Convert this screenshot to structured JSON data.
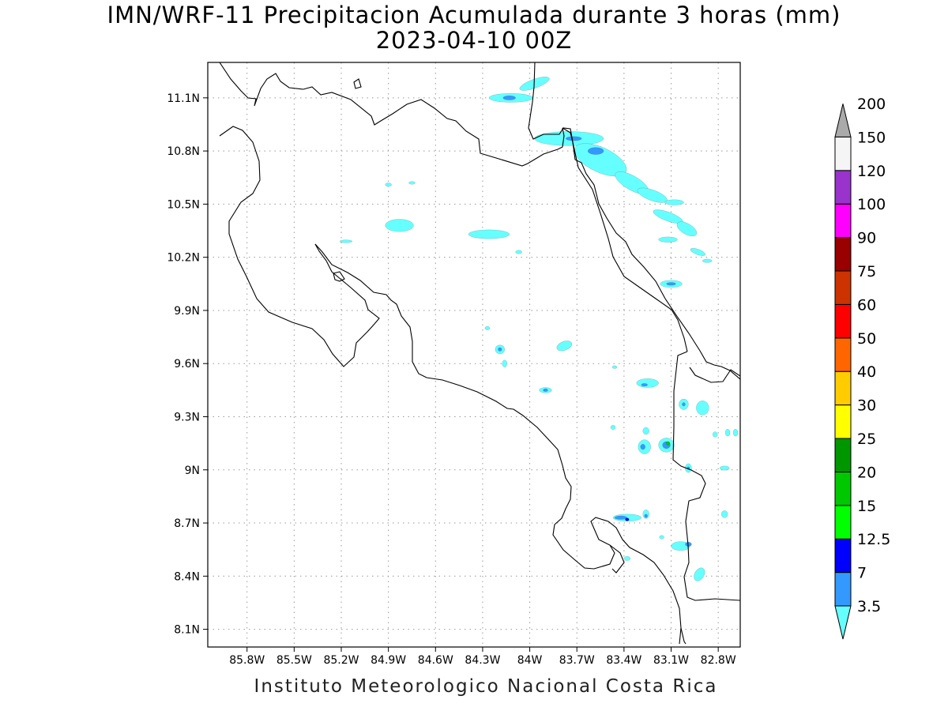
{
  "header": {
    "title": "IMN/WRF-11 Precipitacion Acumulada durante 3 horas (mm)",
    "date": "2023-04-10 00Z"
  },
  "footer": {
    "credit": "Instituto Meteorologico Nacional Costa Rica"
  },
  "map": {
    "lon_range": [
      -86.05,
      -82.66
    ],
    "lat_range": [
      8.0,
      11.3
    ],
    "x_ticks": [
      {
        "value": -85.8,
        "label": "85.8W"
      },
      {
        "value": -85.5,
        "label": "85.5W"
      },
      {
        "value": -85.2,
        "label": "85.2W"
      },
      {
        "value": -84.9,
        "label": "84.9W"
      },
      {
        "value": -84.6,
        "label": "84.6W"
      },
      {
        "value": -84.3,
        "label": "84.3W"
      },
      {
        "value": -84.0,
        "label": "84W"
      },
      {
        "value": -83.7,
        "label": "83.7W"
      },
      {
        "value": -83.4,
        "label": "83.4W"
      },
      {
        "value": -83.1,
        "label": "83.1W"
      },
      {
        "value": -82.8,
        "label": "82.8W"
      }
    ],
    "y_ticks": [
      {
        "value": 11.1,
        "label": "11.1N"
      },
      {
        "value": 10.8,
        "label": "10.8N"
      },
      {
        "value": 10.5,
        "label": "10.5N"
      },
      {
        "value": 10.2,
        "label": "10.2N"
      },
      {
        "value": 9.9,
        "label": "9.9N"
      },
      {
        "value": 9.6,
        "label": "9.6N"
      },
      {
        "value": 9.3,
        "label": "9.3N"
      },
      {
        "value": 9.0,
        "label": "9N"
      },
      {
        "value": 8.7,
        "label": "8.7N"
      },
      {
        "value": 8.4,
        "label": "8.4N"
      },
      {
        "value": 8.1,
        "label": "8.1N"
      }
    ],
    "grid": true,
    "precip_cells": [
      {
        "lon": -83.97,
        "lat": 11.18,
        "dlon": 0.1,
        "dlat": 0.025,
        "rot": -20,
        "mm": 3.5
      },
      {
        "lon": -84.12,
        "lat": 11.1,
        "dlon": 0.14,
        "dlat": 0.025,
        "mm": 3.5
      },
      {
        "lon": -84.13,
        "lat": 11.1,
        "dlon": 0.04,
        "dlat": 0.012,
        "mm": 7
      },
      {
        "lon": -83.75,
        "lat": 10.87,
        "dlon": 0.22,
        "dlat": 0.04,
        "mm": 3.5
      },
      {
        "lon": -83.72,
        "lat": 10.87,
        "dlon": 0.05,
        "dlat": 0.012,
        "mm": 7
      },
      {
        "lon": -83.55,
        "lat": 10.75,
        "dlon": 0.18,
        "dlat": 0.07,
        "rot": 25,
        "mm": 3.5
      },
      {
        "lon": -83.58,
        "lat": 10.8,
        "dlon": 0.05,
        "dlat": 0.02,
        "mm": 7
      },
      {
        "lon": -83.35,
        "lat": 10.62,
        "dlon": 0.12,
        "dlat": 0.04,
        "rot": 30,
        "mm": 3.5
      },
      {
        "lon": -83.22,
        "lat": 10.55,
        "dlon": 0.1,
        "dlat": 0.03,
        "rot": 20,
        "mm": 3.5
      },
      {
        "lon": -83.08,
        "lat": 10.51,
        "dlon": 0.06,
        "dlat": 0.015,
        "mm": 3.5
      },
      {
        "lon": -83.12,
        "lat": 10.43,
        "dlon": 0.1,
        "dlat": 0.025,
        "rot": 20,
        "mm": 3.5
      },
      {
        "lon": -83.0,
        "lat": 10.36,
        "dlon": 0.07,
        "dlat": 0.03,
        "rot": 30,
        "mm": 3.5
      },
      {
        "lon": -83.12,
        "lat": 10.3,
        "dlon": 0.06,
        "dlat": 0.015,
        "mm": 3.5
      },
      {
        "lon": -82.93,
        "lat": 10.23,
        "dlon": 0.05,
        "dlat": 0.015,
        "rot": 20,
        "mm": 3.5
      },
      {
        "lon": -82.87,
        "lat": 10.18,
        "dlon": 0.03,
        "dlat": 0.01,
        "mm": 3.5
      },
      {
        "lon": -83.1,
        "lat": 10.05,
        "dlon": 0.07,
        "dlat": 0.02,
        "mm": 3.5
      },
      {
        "lon": -83.1,
        "lat": 10.05,
        "dlon": 0.03,
        "dlat": 0.008,
        "mm": 7
      },
      {
        "lon": -84.83,
        "lat": 10.38,
        "dlon": 0.09,
        "dlat": 0.035,
        "mm": 3.5
      },
      {
        "lon": -84.26,
        "lat": 10.33,
        "dlon": 0.13,
        "dlat": 0.025,
        "mm": 3.5
      },
      {
        "lon": -85.17,
        "lat": 10.29,
        "dlon": 0.04,
        "dlat": 0.008,
        "mm": 3.5
      },
      {
        "lon": -84.9,
        "lat": 10.61,
        "dlon": 0.02,
        "dlat": 0.01,
        "mm": 3.5
      },
      {
        "lon": -84.75,
        "lat": 10.62,
        "dlon": 0.02,
        "dlat": 0.008,
        "mm": 3.5
      },
      {
        "lon": -84.07,
        "lat": 10.23,
        "dlon": 0.02,
        "dlat": 0.01,
        "mm": 3.5
      },
      {
        "lon": -84.27,
        "lat": 9.8,
        "dlon": 0.015,
        "dlat": 0.01,
        "mm": 3.5
      },
      {
        "lon": -84.19,
        "lat": 9.68,
        "dlon": 0.03,
        "dlat": 0.025,
        "mm": 3.5
      },
      {
        "lon": -84.19,
        "lat": 9.68,
        "dlon": 0.012,
        "dlat": 0.01,
        "mm": 7
      },
      {
        "lon": -84.16,
        "lat": 9.6,
        "dlon": 0.015,
        "dlat": 0.02,
        "mm": 3.5
      },
      {
        "lon": -83.78,
        "lat": 9.7,
        "dlon": 0.05,
        "dlat": 0.025,
        "rot": -20,
        "mm": 3.5
      },
      {
        "lon": -83.9,
        "lat": 9.45,
        "dlon": 0.04,
        "dlat": 0.015,
        "mm": 3.5
      },
      {
        "lon": -83.9,
        "lat": 9.45,
        "dlon": 0.015,
        "dlat": 0.008,
        "mm": 7
      },
      {
        "lon": -83.46,
        "lat": 9.58,
        "dlon": 0.015,
        "dlat": 0.008,
        "mm": 3.5
      },
      {
        "lon": -83.25,
        "lat": 9.49,
        "dlon": 0.07,
        "dlat": 0.025,
        "mm": 3.5
      },
      {
        "lon": -83.27,
        "lat": 9.48,
        "dlon": 0.02,
        "dlat": 0.008,
        "mm": 7
      },
      {
        "lon": -83.02,
        "lat": 9.37,
        "dlon": 0.03,
        "dlat": 0.03,
        "mm": 3.5
      },
      {
        "lon": -83.02,
        "lat": 9.37,
        "dlon": 0.01,
        "dlat": 0.01,
        "mm": 7
      },
      {
        "lon": -82.9,
        "lat": 9.35,
        "dlon": 0.04,
        "dlat": 0.04,
        "mm": 3.5
      },
      {
        "lon": -83.27,
        "lat": 9.13,
        "dlon": 0.04,
        "dlat": 0.04,
        "mm": 3.5
      },
      {
        "lon": -83.28,
        "lat": 9.13,
        "dlon": 0.015,
        "dlat": 0.015,
        "mm": 7
      },
      {
        "lon": -83.13,
        "lat": 9.14,
        "dlon": 0.05,
        "dlat": 0.04,
        "mm": 3.5
      },
      {
        "lon": -83.13,
        "lat": 9.14,
        "dlon": 0.025,
        "dlat": 0.02,
        "mm": 7
      },
      {
        "lon": -83.12,
        "lat": 9.15,
        "dlon": 0.012,
        "dlat": 0.01,
        "mm": 20
      },
      {
        "lon": -83.26,
        "lat": 9.22,
        "dlon": 0.02,
        "dlat": 0.02,
        "mm": 3.5
      },
      {
        "lon": -82.99,
        "lat": 9.01,
        "dlon": 0.02,
        "dlat": 0.025,
        "mm": 3.5
      },
      {
        "lon": -82.99,
        "lat": 9.01,
        "dlon": 0.008,
        "dlat": 0.008,
        "mm": 7
      },
      {
        "lon": -82.74,
        "lat": 9.21,
        "dlon": 0.015,
        "dlat": 0.02,
        "mm": 3.5
      },
      {
        "lon": -82.69,
        "lat": 9.21,
        "dlon": 0.015,
        "dlat": 0.02,
        "mm": 3.5
      },
      {
        "lon": -82.82,
        "lat": 9.2,
        "dlon": 0.015,
        "dlat": 0.015,
        "mm": 3.5
      },
      {
        "lon": -82.76,
        "lat": 9.01,
        "dlon": 0.03,
        "dlat": 0.012,
        "mm": 3.5
      },
      {
        "lon": -83.47,
        "lat": 9.24,
        "dlon": 0.015,
        "dlat": 0.012,
        "mm": 3.5
      },
      {
        "lon": -83.38,
        "lat": 8.73,
        "dlon": 0.09,
        "dlat": 0.02,
        "mm": 3.5
      },
      {
        "lon": -83.42,
        "lat": 8.73,
        "dlon": 0.04,
        "dlat": 0.01,
        "mm": 7
      },
      {
        "lon": -83.38,
        "lat": 8.72,
        "dlon": 0.012,
        "dlat": 0.008,
        "mm": 12.5
      },
      {
        "lon": -83.26,
        "lat": 8.75,
        "dlon": 0.02,
        "dlat": 0.025,
        "mm": 3.5
      },
      {
        "lon": -83.26,
        "lat": 8.74,
        "dlon": 0.01,
        "dlat": 0.01,
        "mm": 7
      },
      {
        "lon": -83.38,
        "lat": 8.5,
        "dlon": 0.02,
        "dlat": 0.012,
        "mm": 3.5
      },
      {
        "lon": -83.04,
        "lat": 8.57,
        "dlon": 0.06,
        "dlat": 0.025,
        "mm": 3.5
      },
      {
        "lon": -82.99,
        "lat": 8.58,
        "dlon": 0.02,
        "dlat": 0.012,
        "mm": 7
      },
      {
        "lon": -82.92,
        "lat": 8.41,
        "dlon": 0.03,
        "dlat": 0.04,
        "rot": 30,
        "mm": 3.5
      },
      {
        "lon": -82.76,
        "lat": 8.75,
        "dlon": 0.02,
        "dlat": 0.02,
        "mm": 3.5
      },
      {
        "lon": -83.16,
        "lat": 8.62,
        "dlon": 0.015,
        "dlat": 0.01,
        "mm": 3.5
      }
    ]
  },
  "colorbar": {
    "colors": [
      "#66ffff",
      "#3399ff",
      "#0000ff",
      "#00ff00",
      "#00c800",
      "#009600",
      "#ffff00",
      "#ffcc00",
      "#ff6600",
      "#ff0000",
      "#cc3300",
      "#990000",
      "#ff00ff",
      "#9933cc",
      "#f5f5f5",
      "#aaaaaa"
    ],
    "labels": [
      "3.5",
      "7",
      "12.5",
      "15",
      "20",
      "25",
      "30",
      "40",
      "50",
      "60",
      "75",
      "90",
      "100",
      "120",
      "150",
      "200"
    ]
  }
}
